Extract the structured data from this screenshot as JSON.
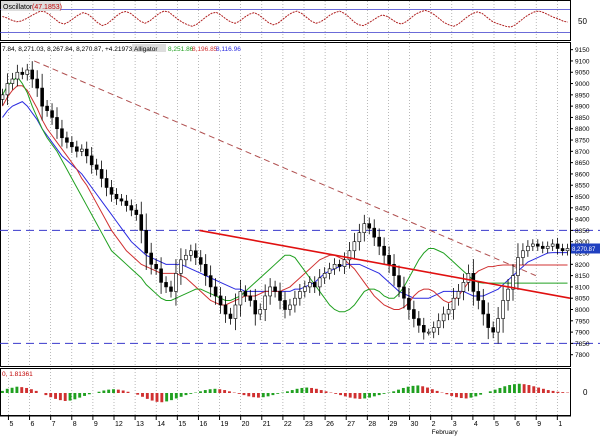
{
  "colors": {
    "frame": "#000000",
    "grid": "#9a9a9a",
    "hline": "#3a3acb",
    "bull": "#ffffff",
    "bear": "#000000",
    "jaw": "#2a2ae0",
    "teeth": "#d03030",
    "lips": "#20a020",
    "trend": "#e01010",
    "dashtrend": "#b05050",
    "osc": "#b02020",
    "ao_up": "#20a020",
    "ao_down": "#d03030",
    "label_bg": "#2040c0",
    "label_fg": "#ffffff"
  },
  "chart_data": {
    "type": "candlestick",
    "oscillator_panel": {
      "label": "Oscillator",
      "value": "(47.1853)",
      "ylim": [
        0,
        100
      ],
      "ytick": "50",
      "levels": [
        20,
        80
      ],
      "line": [
        62,
        58,
        52,
        48,
        50,
        56,
        63,
        70,
        76,
        74,
        66,
        56,
        46,
        42,
        48,
        57,
        66,
        72,
        68,
        58,
        46,
        38,
        42,
        52,
        63,
        72,
        75,
        70,
        60,
        50,
        44,
        50,
        60,
        70,
        76,
        74,
        64,
        54,
        46,
        40,
        36,
        42,
        52,
        62,
        70,
        73,
        66,
        56,
        48,
        44,
        50,
        60,
        68,
        72,
        66,
        56,
        46,
        40,
        44,
        54,
        64,
        72,
        76,
        70,
        60,
        50,
        44,
        48,
        56,
        66,
        72,
        76,
        70,
        60,
        48,
        40,
        38,
        44,
        52,
        60,
        66,
        62,
        54,
        46,
        42,
        48,
        58,
        68,
        74,
        78,
        74,
        66,
        56,
        46,
        40,
        36,
        42,
        52,
        62,
        70,
        74,
        70,
        60,
        50,
        44,
        40,
        36,
        34,
        40,
        50,
        60,
        68,
        74,
        76,
        72,
        66,
        60,
        56,
        50,
        47
      ]
    },
    "price_panel": {
      "header": "7.84, 8,271.03, 8,267.84, 8,270.87, +4.21973",
      "indicator_label": "Alligator",
      "indicator_values": [
        "8,251.86",
        "8,196.85",
        "8,116.96"
      ],
      "ylim": [
        7750,
        9175
      ],
      "yticks": [
        9150,
        9100,
        9050,
        9000,
        8950,
        8900,
        8850,
        8800,
        8750,
        8700,
        8650,
        8600,
        8550,
        8500,
        8450,
        8400,
        8350,
        8300,
        8250,
        8200,
        8150,
        8100,
        8050,
        8000,
        7950,
        7900,
        7850,
        7800
      ],
      "hlines": [
        8350,
        7850
      ],
      "trendline_solid": [
        [
          0.35,
          8350
        ],
        [
          1.0,
          8050
        ]
      ],
      "trendline_dashed": [
        [
          0.06,
          9100
        ],
        [
          0.94,
          8150
        ]
      ],
      "close": [
        8950,
        9000,
        9020,
        9050,
        9040,
        9060,
        9020,
        8980,
        8900,
        8880,
        8850,
        8800,
        8760,
        8740,
        8720,
        8700,
        8710,
        8680,
        8640,
        8620,
        8580,
        8540,
        8510,
        8490,
        8480,
        8460,
        8440,
        8420,
        8350,
        8250,
        8200,
        8180,
        8120,
        8100,
        8080,
        8160,
        8220,
        8240,
        8260,
        8230,
        8200,
        8150,
        8100,
        8060,
        8020,
        7980,
        7960,
        8020,
        8080,
        8060,
        8040,
        7980,
        8000,
        8060,
        8100,
        8080,
        8040,
        8000,
        8020,
        8050,
        8080,
        8100,
        8120,
        8100,
        8140,
        8160,
        8180,
        8200,
        8190,
        8220,
        8260,
        8300,
        8340,
        8380,
        8360,
        8320,
        8280,
        8240,
        8200,
        8150,
        8100,
        8050,
        8000,
        7960,
        7930,
        7900,
        7900,
        7920,
        7950,
        7980,
        8000,
        8050,
        8080,
        8120,
        8160,
        8080,
        8040,
        7980,
        7920,
        7900,
        7960,
        8040,
        8090,
        8150,
        8230,
        8260,
        8280,
        8290,
        8280,
        8270,
        8280,
        8290,
        8270,
        8260,
        8270
      ],
      "jaw": [
        8850,
        8880,
        8900,
        8910,
        8920,
        8900,
        8870,
        8840,
        8800,
        8770,
        8740,
        8710,
        8680,
        8660,
        8640,
        8620,
        8600,
        8570,
        8540,
        8510,
        8480,
        8450,
        8420,
        8390,
        8360,
        8330,
        8300,
        8280,
        8260,
        8240,
        8230,
        8220,
        8210,
        8200,
        8200,
        8200,
        8200,
        8190,
        8180,
        8170,
        8160,
        8150,
        8140,
        8130,
        8120,
        8110,
        8100,
        8090,
        8090,
        8080,
        8080,
        8080,
        8080,
        8080,
        8080,
        8080,
        8080,
        8080,
        8080,
        8090,
        8090,
        8100,
        8110,
        8120,
        8140,
        8160,
        8170,
        8180,
        8190,
        8200,
        8200,
        8200,
        8200,
        8190,
        8180,
        8170,
        8160,
        8140,
        8120,
        8100,
        8080,
        8070,
        8060,
        8050,
        8050,
        8050,
        8050,
        8060,
        8070,
        8080,
        8080,
        8080,
        8080,
        8080,
        8070,
        8060,
        8060,
        8060,
        8070,
        8080,
        8090,
        8110,
        8130,
        8150,
        8170,
        8190,
        8210,
        8220,
        8230,
        8240,
        8250,
        8252,
        8252,
        8252,
        8252
      ],
      "teeth": [
        8900,
        8940,
        8970,
        8990,
        8990,
        8970,
        8930,
        8890,
        8840,
        8800,
        8770,
        8740,
        8710,
        8680,
        8650,
        8620,
        8580,
        8550,
        8510,
        8470,
        8430,
        8390,
        8350,
        8320,
        8290,
        8260,
        8240,
        8220,
        8200,
        8190,
        8180,
        8170,
        8160,
        8160,
        8160,
        8160,
        8150,
        8140,
        8120,
        8100,
        8080,
        8060,
        8040,
        8030,
        8020,
        8020,
        8030,
        8040,
        8050,
        8060,
        8060,
        8060,
        8070,
        8080,
        8080,
        8080,
        8080,
        8090,
        8100,
        8120,
        8140,
        8160,
        8180,
        8200,
        8220,
        8230,
        8240,
        8240,
        8230,
        8220,
        8200,
        8180,
        8150,
        8120,
        8090,
        8060,
        8040,
        8020,
        8010,
        8000,
        8000,
        8010,
        8030,
        8060,
        8080,
        8090,
        8090,
        8080,
        8060,
        8040,
        8030,
        8040,
        8060,
        8090,
        8120,
        8150,
        8170,
        8180,
        8190,
        8190,
        8195,
        8197,
        8197,
        8197,
        8197,
        8197,
        8197,
        8197,
        8197,
        8197,
        8197,
        8197,
        8197,
        8197,
        8197
      ],
      "lips": [
        8950,
        8990,
        9010,
        9030,
        9000,
        8960,
        8900,
        8850,
        8800,
        8760,
        8730,
        8700,
        8660,
        8620,
        8580,
        8540,
        8500,
        8460,
        8420,
        8380,
        8340,
        8300,
        8260,
        8240,
        8220,
        8200,
        8180,
        8160,
        8140,
        8110,
        8090,
        8070,
        8050,
        8040,
        8040,
        8050,
        8060,
        8070,
        8080,
        8090,
        8090,
        8080,
        8070,
        8060,
        8050,
        8040,
        8040,
        8050,
        8060,
        8080,
        8100,
        8120,
        8140,
        8160,
        8180,
        8200,
        8220,
        8240,
        8240,
        8230,
        8200,
        8170,
        8140,
        8110,
        8080,
        8050,
        8020,
        8000,
        7990,
        7990,
        8000,
        8020,
        8050,
        8080,
        8090,
        8090,
        8080,
        8060,
        8050,
        8050,
        8070,
        8100,
        8140,
        8180,
        8220,
        8250,
        8270,
        8270,
        8260,
        8250,
        8230,
        8210,
        8190,
        8170,
        8150,
        8130,
        8120,
        8117,
        8117,
        8117,
        8117,
        8117,
        8117,
        8117,
        8117,
        8117,
        8117,
        8117,
        8117,
        8117,
        8117,
        8117,
        8117,
        8117,
        8117
      ],
      "last_value_label": "8,270.87"
    },
    "ao_panel": {
      "label": "0, 1.81361",
      "ylim": [
        -100,
        100
      ],
      "ytick": "0",
      "values": [
        10,
        20,
        25,
        30,
        28,
        24,
        18,
        10,
        0,
        -10,
        -20,
        -28,
        -34,
        -38,
        -36,
        -30,
        -22,
        -14,
        -6,
        0,
        6,
        12,
        16,
        18,
        16,
        12,
        6,
        0,
        -8,
        -18,
        -28,
        -36,
        -42,
        -44,
        -40,
        -34,
        -26,
        -18,
        -10,
        -4,
        2,
        8,
        14,
        18,
        20,
        18,
        14,
        8,
        2,
        -4,
        -10,
        -16,
        -20,
        -22,
        -20,
        -16,
        -10,
        -4,
        2,
        8,
        14,
        20,
        24,
        26,
        24,
        20,
        14,
        8,
        2,
        -4,
        -10,
        -16,
        -22,
        -26,
        -28,
        -26,
        -22,
        -16,
        -10,
        -4,
        2,
        8,
        16,
        24,
        30,
        34,
        36,
        32,
        26,
        18,
        10,
        2,
        -6,
        -14,
        -20,
        -24,
        -26,
        -22,
        -16,
        -8,
        0,
        8,
        16,
        24,
        32,
        38,
        42,
        44,
        42,
        38,
        32,
        26,
        20,
        14,
        10,
        6,
        4,
        2
      ]
    },
    "x_labels": [
      "5",
      "6",
      "7",
      "8",
      "9",
      "12",
      "13",
      "14",
      "15",
      "16",
      "19",
      "20",
      "21",
      "22",
      "23",
      "26",
      "27",
      "28",
      "29",
      "30",
      "2",
      "3",
      "4",
      "5",
      "6",
      "9",
      "1"
    ],
    "x_label_month": "February"
  }
}
